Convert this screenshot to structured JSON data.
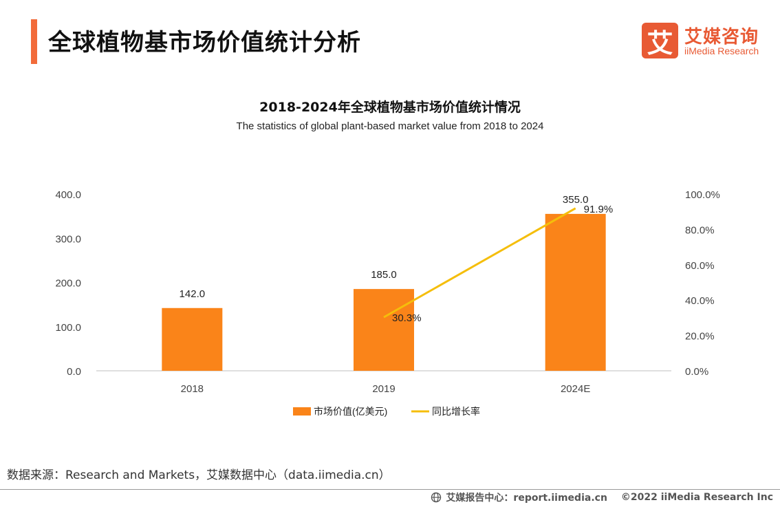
{
  "header": {
    "title": "全球植物基市场价值统计分析",
    "logo_mark": "艾",
    "logo_cn": "艾媒咨询",
    "logo_en": "iiMedia Research"
  },
  "colors": {
    "accent": "#f26b3a",
    "bar": "#fa8419",
    "line": "#f5be0b",
    "axis": "#bfbfbf"
  },
  "chart_data": {
    "type": "bar+line",
    "title": "2018-2024年全球植物基市场价值统计情况",
    "subtitle": "The statistics of global plant-based market value from 2018 to 2024",
    "categories": [
      "2018",
      "2019",
      "2024E"
    ],
    "series": [
      {
        "name": "市场价值(亿美元)",
        "type": "bar",
        "axis": "left",
        "values": [
          142.0,
          185.0,
          355.0
        ],
        "labels": [
          "142.0",
          "185.0",
          "355.0"
        ]
      },
      {
        "name": "同比增长率",
        "type": "line",
        "axis": "right",
        "values": [
          null,
          30.3,
          91.9
        ],
        "labels": [
          "",
          "30.3%",
          "91.9%"
        ]
      }
    ],
    "y_left": {
      "min": 0,
      "max": 400,
      "ticks": [
        "0.0",
        "100.0",
        "200.0",
        "300.0",
        "400.0"
      ]
    },
    "y_right": {
      "min": 0,
      "max": 100,
      "ticks": [
        "0.0%",
        "20.0%",
        "40.0%",
        "60.0%",
        "80.0%",
        "100.0%"
      ]
    },
    "legend_position": "bottom"
  },
  "source": "数据来源：Research and Markets，艾媒数据中心（data.iimedia.cn）",
  "footer": {
    "report": "艾媒报告中心：report.iimedia.cn",
    "copyright": "©2022  iiMedia Research  Inc"
  }
}
